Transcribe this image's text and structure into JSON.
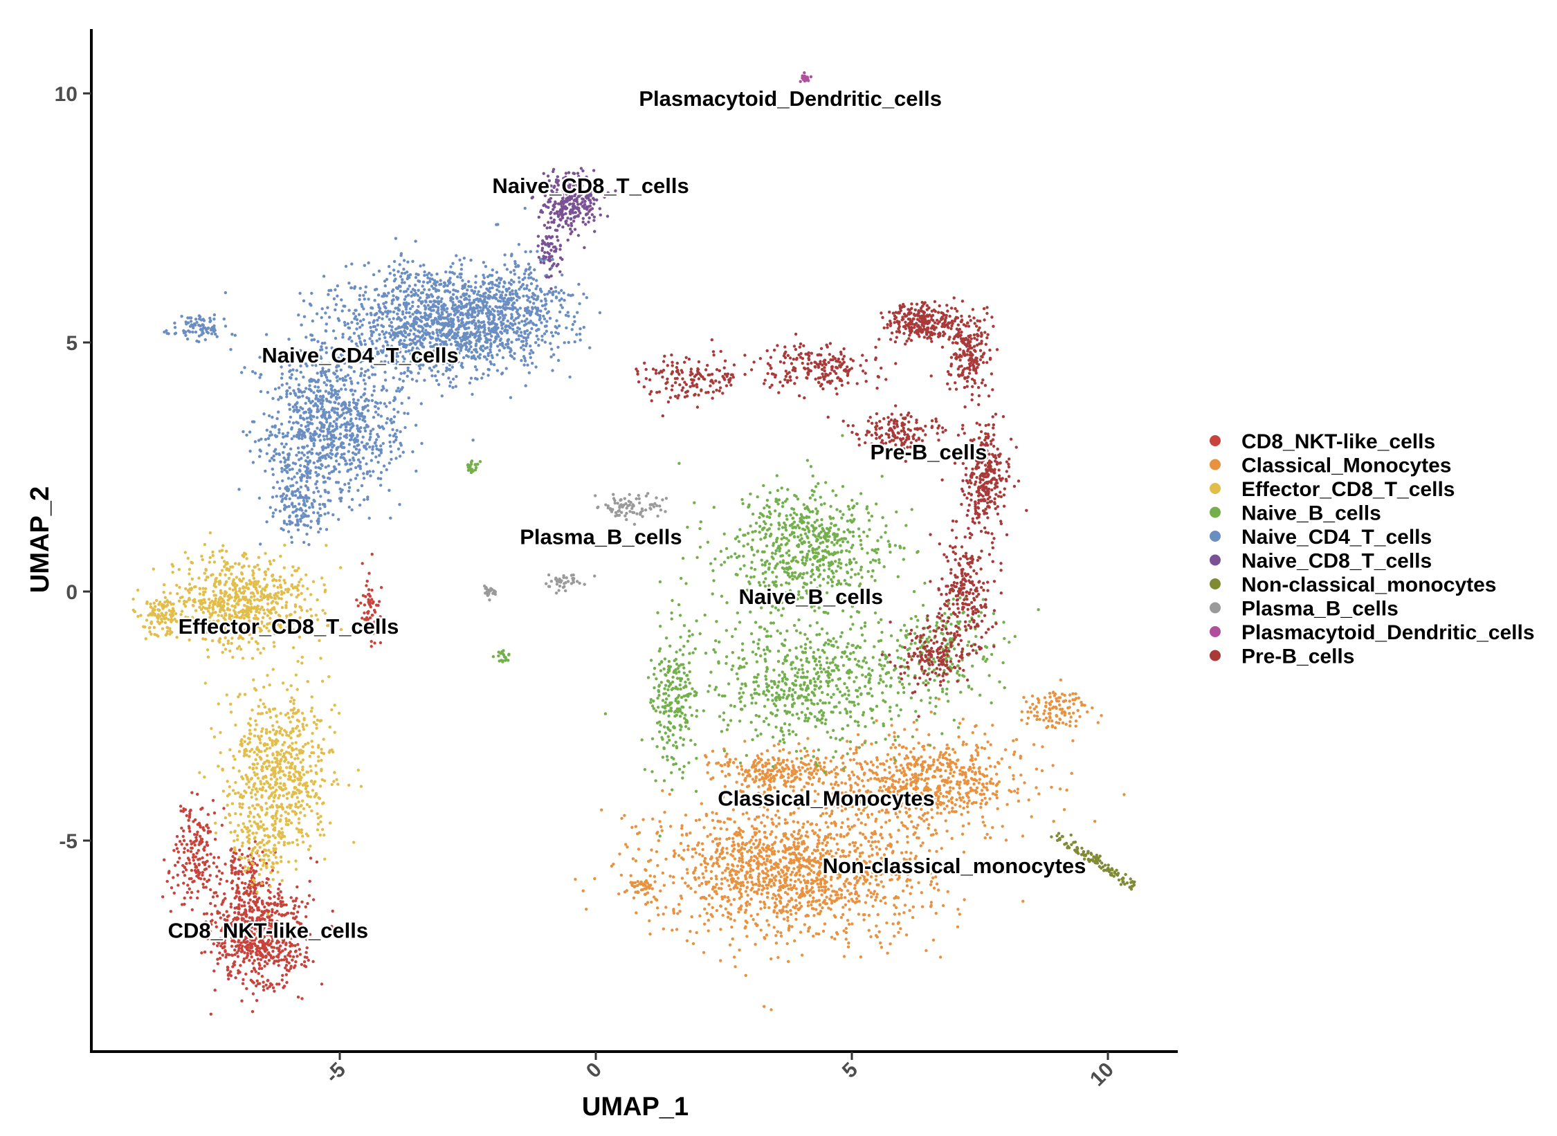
{
  "chart_data": {
    "type": "scatter",
    "title": "",
    "xlabel": "UMAP_1",
    "ylabel": "UMAP_2",
    "xlim": [
      -9.8,
      11.3
    ],
    "ylim": [
      -9.2,
      11.3
    ],
    "xticks": [
      {
        "value": -5,
        "label": "-5"
      },
      {
        "value": 0,
        "label": "0"
      },
      {
        "value": 5,
        "label": "5"
      },
      {
        "value": 10,
        "label": "10"
      }
    ],
    "yticks": [
      {
        "value": -5,
        "label": "-5"
      },
      {
        "value": 0,
        "label": "0"
      },
      {
        "value": 5,
        "label": "5"
      },
      {
        "value": 10,
        "label": "10"
      }
    ],
    "grid": false,
    "legend_position": "right",
    "series": [
      {
        "name": "CD8_NKT-like_cells",
        "color": "#c8433b",
        "label_pos": [
          -6.4,
          -6.95
        ],
        "blobs": [
          [
            -6.6,
            -6.9,
            0.75,
            0.85,
            700
          ],
          [
            -7.8,
            -5.3,
            0.35,
            0.9,
            180
          ],
          [
            -6.8,
            -5.6,
            0.3,
            0.45,
            90
          ],
          [
            -4.4,
            -0.3,
            0.18,
            0.6,
            60
          ]
        ]
      },
      {
        "name": "Classical_Monocytes",
        "color": "#e8923f",
        "label_pos": [
          4.5,
          -4.3
        ],
        "blobs": [
          [
            3.8,
            -5.6,
            2.2,
            1.1,
            1400
          ],
          [
            6.4,
            -3.8,
            1.6,
            0.7,
            650
          ],
          [
            9.0,
            -2.4,
            0.5,
            0.35,
            110
          ],
          [
            3.6,
            -3.6,
            1.0,
            0.35,
            250
          ],
          [
            0.9,
            -5.9,
            0.2,
            0.15,
            35
          ]
        ]
      },
      {
        "name": "Effector_CD8_T_cells",
        "color": "#e2bd49",
        "label_pos": [
          -6.0,
          -0.85
        ],
        "blobs": [
          [
            -6.9,
            -0.2,
            1.1,
            0.75,
            650
          ],
          [
            -6.2,
            -3.6,
            0.85,
            1.3,
            650
          ],
          [
            -8.5,
            -0.5,
            0.3,
            0.35,
            100
          ],
          [
            -6.5,
            -5.0,
            0.5,
            0.6,
            120
          ]
        ]
      },
      {
        "name": "Naive_B_cells",
        "color": "#73b04c",
        "label_pos": [
          4.2,
          -0.25
        ],
        "blobs": [
          [
            4.1,
            0.9,
            1.3,
            1.0,
            650
          ],
          [
            4.1,
            -1.8,
            1.9,
            1.1,
            650
          ],
          [
            1.5,
            -2.2,
            0.35,
            1.3,
            220
          ],
          [
            6.8,
            -1.2,
            0.8,
            0.8,
            170
          ],
          [
            -2.4,
            2.5,
            0.1,
            0.12,
            25
          ],
          [
            -1.8,
            -1.3,
            0.12,
            0.1,
            20
          ]
        ]
      },
      {
        "name": "Naive_CD4_T_cells",
        "color": "#6b8ec2",
        "label_pos": [
          -4.6,
          4.6
        ],
        "blobs": [
          [
            -3.0,
            5.4,
            1.6,
            0.85,
            1400
          ],
          [
            -5.2,
            3.4,
            1.1,
            1.2,
            900
          ],
          [
            -5.8,
            1.8,
            0.5,
            0.6,
            180
          ],
          [
            -7.8,
            5.3,
            0.45,
            0.2,
            90
          ],
          [
            -1.4,
            5.8,
            0.8,
            0.8,
            250
          ]
        ]
      },
      {
        "name": "Naive_CD8_T_cells",
        "color": "#7a5293",
        "label_pos": [
          -0.1,
          8.0
        ],
        "blobs": [
          [
            -0.5,
            7.8,
            0.45,
            0.45,
            280
          ],
          [
            -0.9,
            6.8,
            0.2,
            0.45,
            60
          ]
        ]
      },
      {
        "name": "Non-classical_monocytes",
        "color": "#808a35",
        "label_pos": [
          7.0,
          -5.65
        ],
        "line": [
          [
            9.0,
            -4.9
          ],
          [
            10.5,
            -5.9
          ],
          110
        ]
      },
      {
        "name": "Plasma_B_cells",
        "color": "#9a9a9a",
        "label_pos": [
          0.1,
          0.95
        ],
        "blobs": [
          [
            0.7,
            1.7,
            0.55,
            0.2,
            80
          ],
          [
            -0.6,
            0.2,
            0.3,
            0.15,
            40
          ],
          [
            -2.1,
            0.0,
            0.12,
            0.1,
            25
          ]
        ]
      },
      {
        "name": "Plasmacytoid_Dendritic_cells",
        "color": "#b14f9f",
        "label_pos": [
          3.8,
          9.75
        ],
        "blobs": [
          [
            4.1,
            10.3,
            0.07,
            0.06,
            20
          ]
        ]
      },
      {
        "name": "Pre-B_cells",
        "color": "#a93a3a",
        "label_pos": [
          6.5,
          2.65
        ],
        "blobs": [
          [
            6.4,
            5.4,
            0.6,
            0.3,
            280
          ],
          [
            7.3,
            4.8,
            0.35,
            0.6,
            200
          ],
          [
            7.6,
            2.3,
            0.35,
            1.0,
            320
          ],
          [
            7.2,
            0.0,
            0.45,
            0.9,
            240
          ],
          [
            6.6,
            -1.3,
            0.5,
            0.5,
            160
          ],
          [
            4.3,
            4.5,
            0.9,
            0.35,
            200
          ],
          [
            1.8,
            4.3,
            0.8,
            0.4,
            150
          ],
          [
            5.9,
            3.2,
            0.7,
            0.3,
            150
          ]
        ]
      }
    ]
  }
}
